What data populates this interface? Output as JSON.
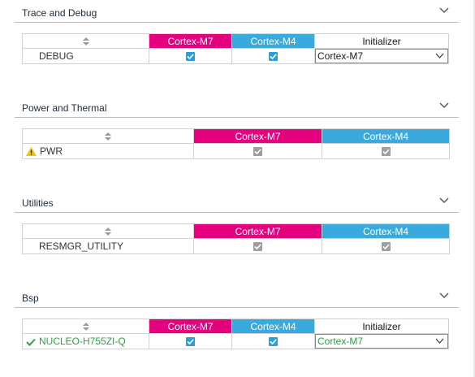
{
  "sections": [
    {
      "title": "Trace and Debug",
      "columns": {
        "m7": "Cortex-M7",
        "m4": "Cortex-M4",
        "init": "Initializer"
      },
      "rows": [
        {
          "name": "DEBUG",
          "m7": true,
          "m4": true,
          "initializer": "Cortex-M7"
        }
      ]
    },
    {
      "title": "Power and Thermal",
      "columns": {
        "m7": "Cortex-M7",
        "m4": "Cortex-M4"
      },
      "rows": [
        {
          "name": "PWR",
          "status_icon": "warning-icon",
          "m7": true,
          "m4": true
        }
      ]
    },
    {
      "title": "Utilities",
      "columns": {
        "m7": "Cortex-M7",
        "m4": "Cortex-M4"
      },
      "rows": [
        {
          "name": "RESMGR_UTILITY",
          "m7": true,
          "m4": true
        }
      ]
    },
    {
      "title": "Bsp",
      "columns": {
        "m7": "Cortex-M7",
        "m4": "Cortex-M4",
        "init": "Initializer"
      },
      "rows": [
        {
          "name": "NUCLEO-H755ZI-Q",
          "status_icon": "check-icon",
          "m7": true,
          "m4": true,
          "initializer": "Cortex-M7"
        }
      ]
    }
  ],
  "icons": {
    "collapse": "chevron-down-icon",
    "sort": "sort-icon",
    "checkbox": "checkbox-checked-icon"
  },
  "colors": {
    "cortex_m7": "#e5007e",
    "cortex_m4": "#3aaadc",
    "checkbox_enabled": "#2a9fd8",
    "checkbox_disabled": "#9e9e9e",
    "ok_text": "#27a341",
    "warning": "#f2c400"
  }
}
